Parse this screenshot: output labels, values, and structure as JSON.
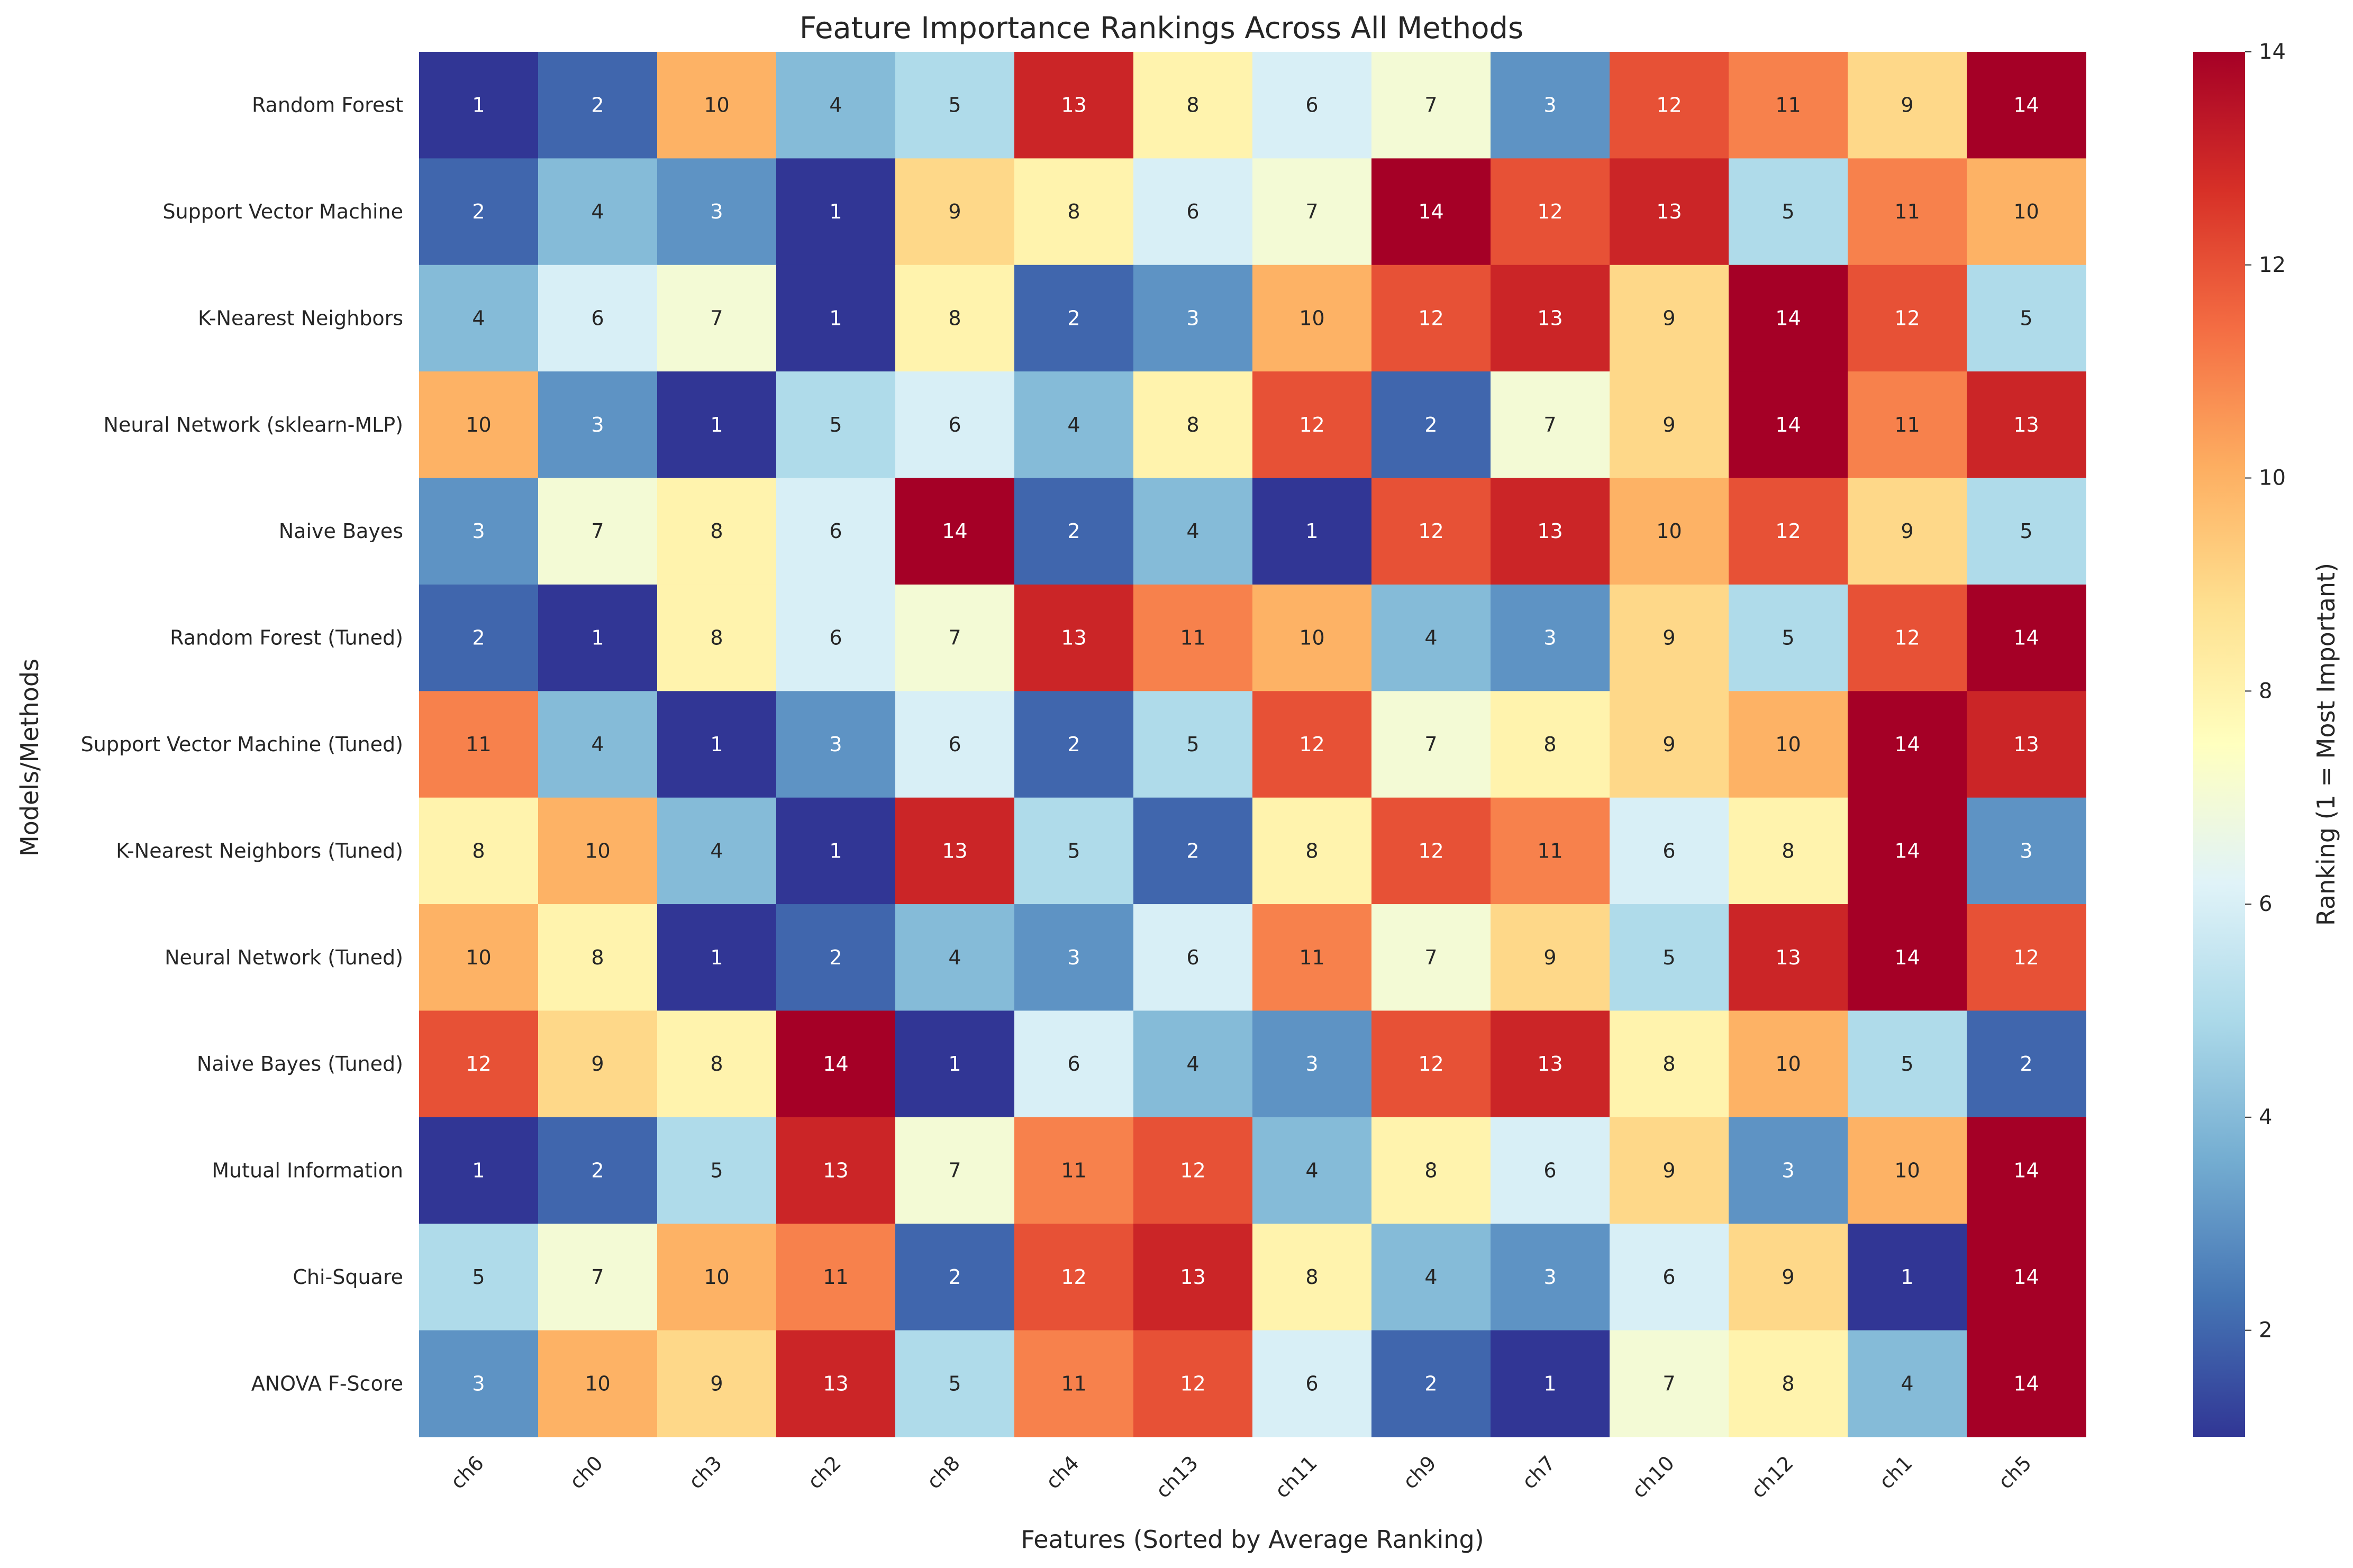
{
  "chart_data": {
    "type": "heatmap",
    "title": "Feature Importance Rankings Across All Methods",
    "xlabel": "Features (Sorted by Average Ranking)",
    "ylabel": "Models/Methods",
    "colorbar_label": "Ranking (1 = Most Important)",
    "colormap": "RdYlBu_r",
    "value_range": [
      1,
      14
    ],
    "colorbar_ticks": [
      2,
      4,
      6,
      8,
      10,
      12,
      14
    ],
    "columns": [
      "ch6",
      "ch0",
      "ch3",
      "ch2",
      "ch8",
      "ch4",
      "ch13",
      "ch11",
      "ch9",
      "ch7",
      "ch10",
      "ch12",
      "ch1",
      "ch5"
    ],
    "rows": [
      "Random Forest",
      "Support Vector Machine",
      "K-Nearest Neighbors",
      "Neural Network (sklearn-MLP)",
      "Naive Bayes",
      "Random Forest (Tuned)",
      "Support Vector Machine (Tuned)",
      "K-Nearest Neighbors (Tuned)",
      "Neural Network (Tuned)",
      "Naive Bayes (Tuned)",
      "Mutual Information",
      "Chi-Square",
      "ANOVA F-Score"
    ],
    "values": [
      [
        1,
        2,
        10,
        4,
        5,
        13,
        8,
        6,
        7,
        3,
        12,
        11,
        9,
        14
      ],
      [
        2,
        4,
        3,
        1,
        9,
        8,
        6,
        7,
        14,
        12,
        13,
        5,
        11,
        10
      ],
      [
        4,
        6,
        7,
        1,
        8,
        2,
        3,
        10,
        12,
        13,
        9,
        14,
        12,
        5
      ],
      [
        10,
        3,
        1,
        5,
        6,
        4,
        8,
        12,
        2,
        7,
        9,
        14,
        11,
        13
      ],
      [
        3,
        7,
        8,
        6,
        14,
        2,
        4,
        1,
        12,
        13,
        10,
        12,
        9,
        5
      ],
      [
        2,
        1,
        8,
        6,
        7,
        13,
        11,
        10,
        4,
        3,
        9,
        5,
        12,
        14
      ],
      [
        11,
        4,
        1,
        3,
        6,
        2,
        5,
        12,
        7,
        8,
        9,
        10,
        14,
        13
      ],
      [
        8,
        10,
        4,
        1,
        13,
        5,
        2,
        8,
        12,
        11,
        6,
        8,
        14,
        3
      ],
      [
        10,
        8,
        1,
        2,
        4,
        3,
        6,
        11,
        7,
        9,
        5,
        13,
        14,
        12
      ],
      [
        12,
        9,
        8,
        14,
        1,
        6,
        4,
        3,
        12,
        13,
        8,
        10,
        5,
        2
      ],
      [
        1,
        2,
        5,
        13,
        7,
        11,
        12,
        4,
        8,
        6,
        9,
        3,
        10,
        14
      ],
      [
        5,
        7,
        10,
        11,
        2,
        12,
        13,
        8,
        4,
        3,
        6,
        9,
        1,
        14
      ],
      [
        3,
        10,
        9,
        13,
        5,
        11,
        12,
        6,
        2,
        1,
        7,
        8,
        4,
        14
      ]
    ]
  }
}
